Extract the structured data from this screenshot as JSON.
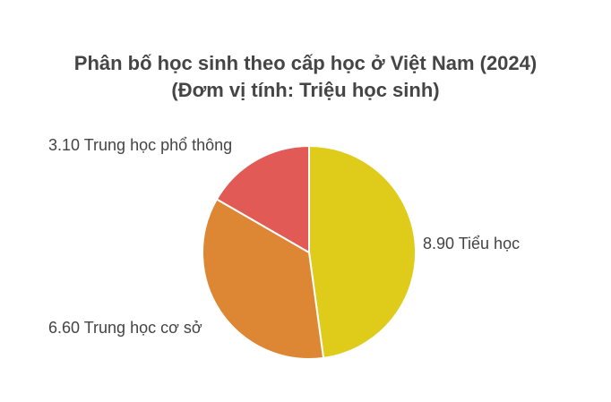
{
  "chart_data": {
    "type": "pie",
    "title": "Phân bố học sinh theo cấp học ở Việt Nam (2024)",
    "subtitle": "(Đơm vị tính: Triệu học sinh)",
    "slices": [
      {
        "label": "Tiểu học",
        "value": 8.9,
        "value_text": "8.90",
        "color": "#dfcb1a"
      },
      {
        "label": "Trung học cơ sở",
        "value": 6.6,
        "value_text": "6.60",
        "color": "#dd8633"
      },
      {
        "label": "Trung học phổ thông",
        "value": 3.1,
        "value_text": "3.10",
        "color": "#e25a55"
      }
    ]
  }
}
